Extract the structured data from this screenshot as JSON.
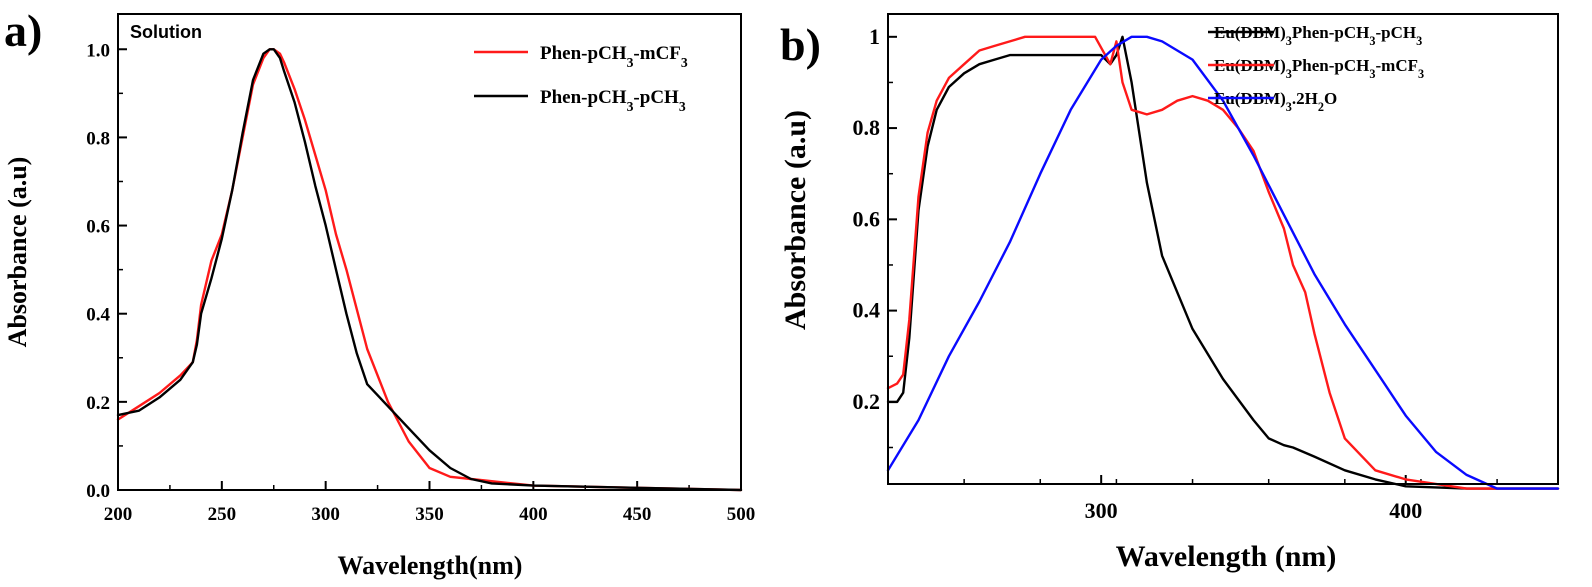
{
  "colors": {
    "red": "#ff1a1a",
    "black": "#000000",
    "blue": "#0a0aff"
  },
  "chart_data": [
    {
      "panel": "a)",
      "type": "line",
      "annotation": "Solution",
      "xlabel": "Wavelength(nm)",
      "ylabel": "Absorbance (a.u)",
      "xlim": [
        200,
        500
      ],
      "ylim": [
        0,
        1.08
      ],
      "xticks": [
        200,
        250,
        300,
        350,
        400,
        450,
        500
      ],
      "yticks": [
        0.0,
        0.2,
        0.4,
        0.6,
        0.8,
        1.0
      ],
      "ytick_labels": [
        "0.0",
        "0.2",
        "0.4",
        "0.6",
        "0.8",
        "1.0"
      ],
      "legend_position": "top-right",
      "series": [
        {
          "name": "Phen-pCH3-mCF3",
          "name_parts": [
            [
              "Phen-pCH",
              ""
            ],
            [
              "3",
              "sub"
            ],
            [
              "-mCF",
              ""
            ],
            [
              "3",
              "sub"
            ]
          ],
          "color": "red",
          "x": [
            200,
            210,
            220,
            230,
            236,
            238,
            240,
            245,
            250,
            255,
            260,
            265,
            270,
            273,
            275,
            278,
            280,
            285,
            290,
            295,
            300,
            305,
            310,
            315,
            320,
            330,
            340,
            350,
            360,
            370,
            380,
            400,
            450,
            500
          ],
          "y": [
            0.16,
            0.19,
            0.22,
            0.26,
            0.29,
            0.34,
            0.42,
            0.52,
            0.58,
            0.68,
            0.8,
            0.92,
            0.98,
            1.0,
            1.0,
            0.99,
            0.97,
            0.91,
            0.84,
            0.76,
            0.68,
            0.58,
            0.5,
            0.41,
            0.32,
            0.2,
            0.11,
            0.05,
            0.03,
            0.025,
            0.02,
            0.01,
            0.005,
            0.0
          ]
        },
        {
          "name": "Phen-pCH3-pCH3",
          "name_parts": [
            [
              "Phen-pCH",
              ""
            ],
            [
              "3",
              "sub"
            ],
            [
              "-pCH",
              ""
            ],
            [
              "3",
              "sub"
            ]
          ],
          "color": "black",
          "x": [
            200,
            210,
            220,
            230,
            236,
            238,
            240,
            245,
            250,
            255,
            260,
            265,
            270,
            273,
            275,
            278,
            280,
            285,
            290,
            295,
            300,
            305,
            310,
            315,
            320,
            330,
            340,
            350,
            360,
            370,
            380,
            400,
            450,
            500
          ],
          "y": [
            0.17,
            0.18,
            0.21,
            0.25,
            0.29,
            0.33,
            0.4,
            0.48,
            0.57,
            0.68,
            0.81,
            0.93,
            0.99,
            1.0,
            1.0,
            0.98,
            0.95,
            0.88,
            0.79,
            0.69,
            0.6,
            0.5,
            0.4,
            0.31,
            0.24,
            0.19,
            0.14,
            0.09,
            0.05,
            0.025,
            0.015,
            0.01,
            0.005,
            0.0
          ]
        }
      ]
    },
    {
      "panel": "b)",
      "type": "line",
      "xlabel": "Wavelength (nm)",
      "ylabel": "Absorbance (a.u)",
      "xlim": [
        230,
        450
      ],
      "ylim": [
        0.02,
        1.05
      ],
      "xticks": [
        300,
        400
      ],
      "yticks": [
        0.2,
        0.4,
        0.6,
        0.8,
        1.0
      ],
      "ytick_labels": [
        "0.2",
        "0.4",
        "0.6",
        "0.8",
        "1"
      ],
      "legend_position": "top-right",
      "series": [
        {
          "name": "Eu(DBM)3Phen-pCH3-pCH3",
          "name_parts": [
            [
              "Eu(DBM)",
              ""
            ],
            [
              "3",
              "sub"
            ],
            [
              "Phen-pCH",
              ""
            ],
            [
              "3",
              "sub"
            ],
            [
              "-pCH",
              ""
            ],
            [
              "3",
              "sub"
            ]
          ],
          "color": "black",
          "x": [
            230,
            233,
            235,
            237,
            240,
            243,
            246,
            250,
            255,
            260,
            265,
            270,
            275,
            280,
            290,
            300,
            303,
            305,
            307,
            310,
            315,
            320,
            330,
            340,
            350,
            355,
            360,
            363,
            370,
            380,
            390,
            400,
            420,
            450
          ],
          "y": [
            0.2,
            0.2,
            0.22,
            0.34,
            0.62,
            0.76,
            0.84,
            0.89,
            0.92,
            0.94,
            0.95,
            0.96,
            0.96,
            0.96,
            0.96,
            0.96,
            0.94,
            0.96,
            1.0,
            0.9,
            0.68,
            0.52,
            0.36,
            0.25,
            0.16,
            0.12,
            0.105,
            0.1,
            0.08,
            0.05,
            0.03,
            0.015,
            0.01,
            0.01
          ]
        },
        {
          "name": "Eu(DBM)3Phen-pCH3-mCF3",
          "name_parts": [
            [
              "Eu(DBM)",
              ""
            ],
            [
              "3",
              "sub"
            ],
            [
              "Phen-pCH",
              ""
            ],
            [
              "3",
              "sub"
            ],
            [
              "-mCF",
              ""
            ],
            [
              "3",
              "sub"
            ]
          ],
          "color": "red",
          "x": [
            230,
            233,
            235,
            237,
            240,
            243,
            246,
            250,
            255,
            260,
            265,
            270,
            275,
            280,
            290,
            298,
            303,
            305,
            307,
            310,
            315,
            320,
            325,
            330,
            335,
            340,
            345,
            350,
            355,
            360,
            363,
            367,
            370,
            375,
            380,
            390,
            400,
            420,
            450
          ],
          "y": [
            0.23,
            0.24,
            0.26,
            0.38,
            0.65,
            0.79,
            0.86,
            0.91,
            0.94,
            0.97,
            0.98,
            0.99,
            1.0,
            1.0,
            1.0,
            1.0,
            0.94,
            0.99,
            0.9,
            0.84,
            0.83,
            0.84,
            0.86,
            0.87,
            0.86,
            0.84,
            0.8,
            0.75,
            0.66,
            0.58,
            0.5,
            0.44,
            0.35,
            0.22,
            0.12,
            0.05,
            0.03,
            0.01,
            0.01
          ]
        },
        {
          "name": "Eu(DBM)3.2H2O",
          "name_parts": [
            [
              "Eu(DBM)",
              ""
            ],
            [
              "3",
              "sub"
            ],
            [
              ".2H",
              ""
            ],
            [
              "2",
              "sub"
            ],
            [
              "O",
              ""
            ]
          ],
          "color": "blue",
          "x": [
            230,
            240,
            250,
            260,
            270,
            280,
            290,
            300,
            305,
            310,
            315,
            320,
            330,
            340,
            350,
            360,
            370,
            380,
            390,
            400,
            410,
            420,
            430,
            435,
            440,
            450
          ],
          "y": [
            0.05,
            0.16,
            0.3,
            0.42,
            0.55,
            0.7,
            0.84,
            0.95,
            0.98,
            1.0,
            1.0,
            0.99,
            0.95,
            0.86,
            0.74,
            0.61,
            0.48,
            0.37,
            0.27,
            0.17,
            0.09,
            0.04,
            0.01,
            0.01,
            0.01,
            0.01
          ]
        }
      ]
    }
  ]
}
